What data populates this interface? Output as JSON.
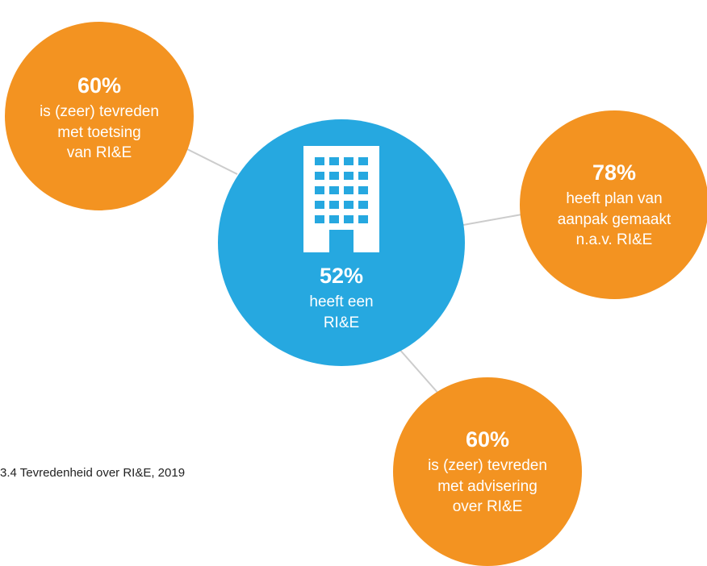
{
  "colors": {
    "orange": "#F39321",
    "blue": "#26A8E0",
    "connector": "#CCCCCC",
    "text": "#FFFFFF"
  },
  "center": {
    "icon": "office-building-icon",
    "percentage": "52%",
    "lines": [
      "heeft een",
      "RI&E"
    ]
  },
  "satellites": [
    {
      "id": "top-left",
      "percentage": "60%",
      "lines": [
        "is (zeer) tevreden",
        "met toetsing",
        "van RI&E"
      ]
    },
    {
      "id": "right",
      "percentage": "78%",
      "lines": [
        "heeft plan van",
        "aanpak gemaakt",
        "n.a.v. RI&E"
      ]
    },
    {
      "id": "bottom",
      "percentage": "60%",
      "lines": [
        "is (zeer) tevreden",
        "met advisering",
        "over RI&E"
      ]
    }
  ],
  "caption": "3.4 Tevredenheid over RI&E, 2019"
}
